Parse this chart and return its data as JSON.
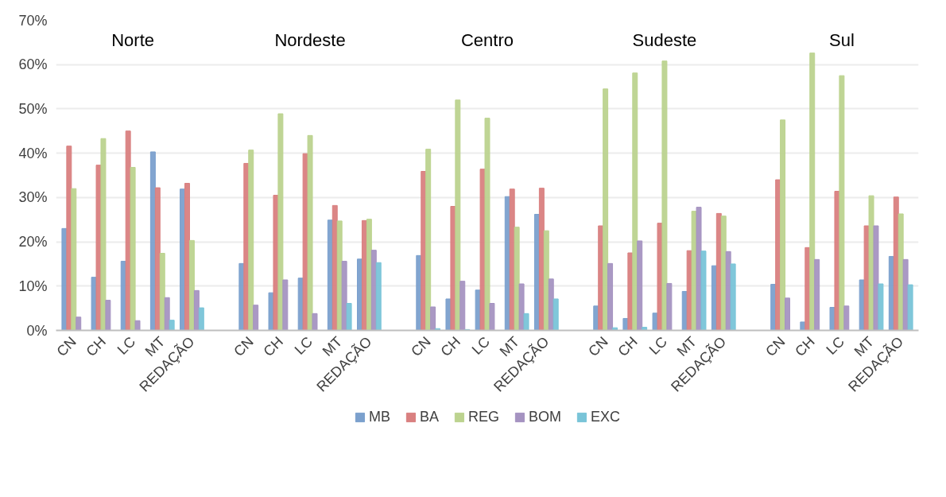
{
  "chart_data": {
    "type": "bar",
    "categories": [
      "CN",
      "CH",
      "LC",
      "MT",
      "REDAÇÃO",
      null,
      "CN",
      "CH",
      "LC",
      "MT",
      "REDAÇÃO",
      null,
      "CN",
      "CH",
      "LC",
      "MT",
      "REDAÇÃO",
      null,
      "CN",
      "CH",
      "LC",
      "MT",
      "REDAÇÃO",
      null,
      "CN",
      "CH",
      "LC",
      "MT",
      "REDAÇÃO"
    ],
    "series": [
      {
        "name": "MB",
        "color": "#7ba0cd",
        "values": [
          23,
          12,
          15.6,
          40.3,
          31.9,
          null,
          15.1,
          8.5,
          11.8,
          24.9,
          16.1,
          null,
          16.9,
          7.1,
          9.1,
          30.2,
          26.2,
          null,
          5.5,
          2.7,
          3.9,
          8.8,
          14.6,
          null,
          10.4,
          1.9,
          5.2,
          11.4,
          16.7
        ]
      },
      {
        "name": "BA",
        "color": "#d98080",
        "values": [
          41.6,
          37.3,
          45,
          32.2,
          33.2,
          null,
          37.7,
          30.5,
          39.9,
          28.2,
          24.8,
          null,
          35.9,
          28,
          36.4,
          31.9,
          32.1,
          null,
          23.6,
          17.5,
          24.2,
          18,
          26.4,
          null,
          34,
          18.7,
          31.4,
          23.6,
          30.1
        ]
      },
      {
        "name": "REG",
        "color": "#bcd38f",
        "values": [
          32,
          43.3,
          36.8,
          17.4,
          20.3,
          null,
          40.7,
          48.9,
          44,
          24.7,
          25.1,
          null,
          40.9,
          52,
          47.9,
          23.3,
          22.5,
          null,
          54.5,
          58.1,
          60.8,
          26.9,
          25.8,
          null,
          47.5,
          62.6,
          57.5,
          30.4,
          26.3
        ]
      },
      {
        "name": "BOM",
        "color": "#a593c1",
        "values": [
          3,
          6.8,
          2.2,
          7.4,
          9,
          null,
          5.7,
          11.4,
          3.8,
          15.6,
          18.1,
          null,
          5.3,
          11.1,
          6.1,
          10.5,
          11.6,
          null,
          15.1,
          20.2,
          10.6,
          27.8,
          17.8,
          null,
          7.3,
          16,
          5.5,
          23.6,
          16
        ]
      },
      {
        "name": "EXC",
        "color": "#79c4d8",
        "values": [
          null,
          null,
          null,
          2.3,
          5.1,
          null,
          null,
          null,
          null,
          6.1,
          15.3,
          null,
          0.4,
          0.2,
          null,
          3.8,
          7.1,
          null,
          0.6,
          0.7,
          null,
          17.9,
          15,
          null,
          null,
          null,
          null,
          10.5,
          10.3
        ]
      }
    ],
    "annotations": [
      "Norte",
      "Nordeste",
      "Centro",
      "Sudeste",
      "Sul"
    ],
    "ylim": [
      0,
      70
    ],
    "yticks": [
      {
        "value": 0,
        "label": "0%"
      },
      {
        "value": 10,
        "label": "10%"
      },
      {
        "value": 20,
        "label": "20%"
      },
      {
        "value": 30,
        "label": "30%"
      },
      {
        "value": 40,
        "label": "40%"
      },
      {
        "value": 50,
        "label": "50%"
      },
      {
        "value": 60,
        "label": "60%"
      },
      {
        "value": 70,
        "label": "70%"
      }
    ],
    "grid": "y",
    "legend": "bottom"
  }
}
